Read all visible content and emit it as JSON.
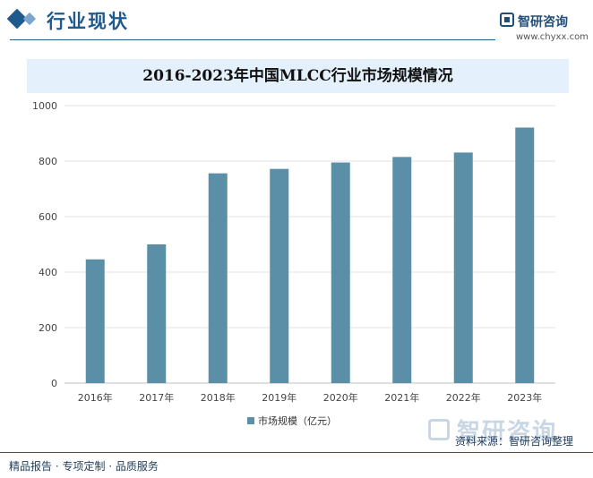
{
  "header": {
    "section_title": "行业现状",
    "brand_name": "智研咨询",
    "brand_url": "www.chyxx.com"
  },
  "chart_data": {
    "type": "bar",
    "title": "2016-2023年中国MLCC行业市场规模情况",
    "categories": [
      "2016年",
      "2017年",
      "2018年",
      "2019年",
      "2020年",
      "2021年",
      "2022年",
      "2023年"
    ],
    "series": [
      {
        "name": "市场规模（亿元）",
        "values": [
          446,
          500,
          756,
          772,
          795,
          815,
          831,
          921
        ]
      }
    ],
    "ylim": [
      0,
      1000
    ],
    "yticks": [
      "0",
      "200",
      "400",
      "600",
      "800",
      "1000"
    ],
    "grid": true,
    "legend": "bottom",
    "bar_color": "#5b8fa8"
  },
  "footer": {
    "left": "精品报告 · 专项定制 · 品质服务",
    "watermark_brand": "智研咨询",
    "source": "资料来源：智研咨询整理"
  }
}
